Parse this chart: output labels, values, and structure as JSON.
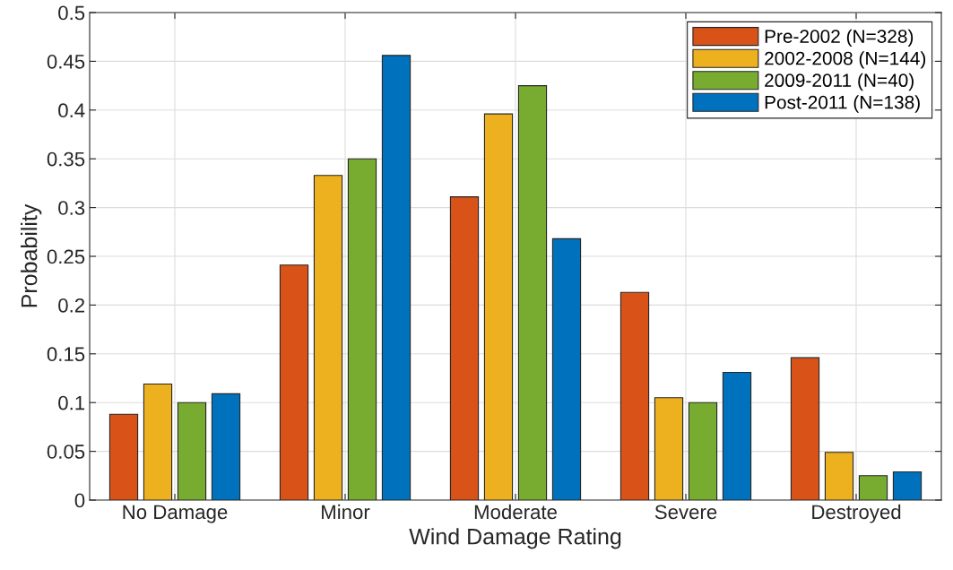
{
  "chart_data": {
    "type": "bar",
    "xlabel": "Wind Damage Rating",
    "ylabel": "Probability",
    "categories": [
      "No Damage",
      "Minor",
      "Moderate",
      "Severe",
      "Destroyed"
    ],
    "series": [
      {
        "name": "Pre-2002 (N=328)",
        "color": "#d95319",
        "values": [
          0.088,
          0.241,
          0.311,
          0.213,
          0.146
        ]
      },
      {
        "name": "2002-2008 (N=144)",
        "color": "#edb120",
        "values": [
          0.119,
          0.333,
          0.396,
          0.105,
          0.049
        ]
      },
      {
        "name": "2009-2011 (N=40)",
        "color": "#77ac30",
        "values": [
          0.1,
          0.35,
          0.425,
          0.1,
          0.025
        ]
      },
      {
        "name": "Post-2011 (N=138)",
        "color": "#0072bd",
        "values": [
          0.109,
          0.456,
          0.268,
          0.131,
          0.029
        ]
      }
    ],
    "ylim": [
      0,
      0.5
    ],
    "yticks": [
      0,
      0.05,
      0.1,
      0.15,
      0.2,
      0.25,
      0.3,
      0.35,
      0.4,
      0.45,
      0.5
    ],
    "grid": true,
    "legend": "top right"
  }
}
